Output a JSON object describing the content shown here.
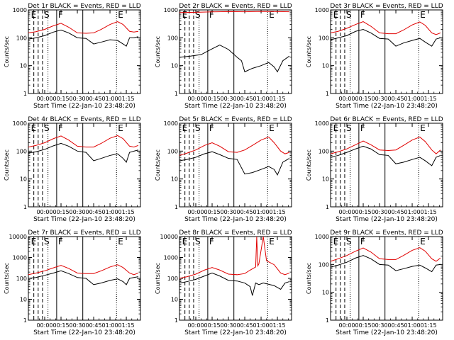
{
  "figure": {
    "rows": 3,
    "cols": 3,
    "ylabel": "Counts/sec",
    "xlabel": "Start Time (22-Jan-10 23:48:20)",
    "x_tick_labels": [
      "00:00",
      "00:15",
      "00:30",
      "00:45",
      "01:00",
      "01:15"
    ],
    "x_range_minutes": [
      -15,
      88
    ],
    "marker_labels": {
      "E_left": "E",
      "S": "S",
      "F": "F",
      "E_right": "E"
    },
    "colors": {
      "events": "#000000",
      "lld": "#e00000"
    }
  },
  "chart_data": [
    {
      "type": "line",
      "title": "Det 1r  BLACK = Events, RED = LLD",
      "yscale": "log",
      "ylim": [
        1,
        1000
      ],
      "yticks": [
        1,
        10,
        100,
        1000
      ],
      "series": [
        {
          "name": "Events",
          "color": "#000000",
          "x": [
            -15,
            -8,
            0,
            8,
            15,
            22,
            30,
            38,
            45,
            52,
            60,
            67,
            72,
            75,
            78,
            82,
            86
          ],
          "y": [
            90,
            100,
            120,
            160,
            190,
            150,
            100,
            95,
            60,
            70,
            85,
            80,
            60,
            50,
            100,
            100,
            110
          ]
        },
        {
          "name": "LLD",
          "color": "#e00000",
          "x": [
            -15,
            -8,
            0,
            8,
            15,
            22,
            30,
            38,
            45,
            52,
            60,
            67,
            72,
            78,
            82,
            86
          ],
          "y": [
            150,
            165,
            200,
            270,
            330,
            240,
            150,
            145,
            150,
            200,
            300,
            380,
            300,
            170,
            160,
            170
          ]
        }
      ]
    },
    {
      "type": "line",
      "title": "Det 2r  BLACK = Events, RED = LLD",
      "yscale": "log",
      "ylim": [
        1,
        1000
      ],
      "yticks": [
        1,
        10,
        100,
        1000
      ],
      "series": [
        {
          "name": "Events",
          "color": "#000000",
          "x": [
            -15,
            -5,
            5,
            15,
            22,
            30,
            38,
            42,
            45,
            52,
            60,
            67,
            72,
            75,
            80,
            86
          ],
          "y": [
            20,
            22,
            25,
            40,
            55,
            38,
            20,
            15,
            6,
            8,
            10,
            13,
            9,
            6,
            15,
            22
          ]
        },
        {
          "name": "LLD",
          "color": "#e00000",
          "x": [
            -15,
            0,
            15,
            30,
            45,
            60,
            75,
            86
          ],
          "y": [
            800,
            820,
            850,
            870,
            860,
            880,
            870,
            860
          ]
        }
      ]
    },
    {
      "type": "line",
      "title": "Det 3r  BLACK = Events, RED = LLD",
      "yscale": "log",
      "ylim": [
        1,
        1000
      ],
      "yticks": [
        1,
        10,
        100,
        1000
      ],
      "series": [
        {
          "name": "Events",
          "color": "#000000",
          "x": [
            -15,
            -8,
            0,
            8,
            15,
            22,
            30,
            38,
            45,
            52,
            60,
            67,
            72,
            78,
            82,
            86
          ],
          "y": [
            85,
            100,
            120,
            170,
            200,
            150,
            95,
            90,
            50,
            65,
            80,
            95,
            70,
            50,
            90,
            100
          ]
        },
        {
          "name": "LLD",
          "color": "#e00000",
          "x": [
            -15,
            -8,
            0,
            8,
            15,
            22,
            30,
            38,
            45,
            52,
            60,
            67,
            72,
            78,
            82,
            86
          ],
          "y": [
            150,
            170,
            220,
            300,
            380,
            260,
            150,
            140,
            140,
            190,
            290,
            370,
            280,
            150,
            130,
            150
          ]
        }
      ]
    },
    {
      "type": "line",
      "title": "Det 4r  BLACK = Events, RED = LLD",
      "yscale": "log",
      "ylim": [
        1,
        1000
      ],
      "yticks": [
        1,
        10,
        100,
        1000
      ],
      "series": [
        {
          "name": "Events",
          "color": "#000000",
          "x": [
            -15,
            -8,
            0,
            8,
            15,
            22,
            30,
            38,
            45,
            52,
            60,
            67,
            72,
            75,
            78,
            82,
            86
          ],
          "y": [
            85,
            95,
            115,
            155,
            190,
            150,
            100,
            90,
            45,
            55,
            70,
            80,
            55,
            40,
            90,
            100,
            110
          ]
        },
        {
          "name": "LLD",
          "color": "#e00000",
          "x": [
            -15,
            -8,
            0,
            8,
            15,
            22,
            30,
            38,
            45,
            52,
            60,
            67,
            72,
            78,
            82,
            86
          ],
          "y": [
            140,
            160,
            200,
            280,
            350,
            250,
            150,
            140,
            140,
            190,
            290,
            360,
            280,
            150,
            140,
            160
          ]
        }
      ]
    },
    {
      "type": "line",
      "title": "Det 5r  BLACK = Events, RED = LLD",
      "yscale": "log",
      "ylim": [
        1,
        1000
      ],
      "yticks": [
        1,
        10,
        100,
        1000
      ],
      "series": [
        {
          "name": "Events",
          "color": "#000000",
          "x": [
            -15,
            -8,
            0,
            8,
            15,
            22,
            30,
            38,
            45,
            52,
            60,
            67,
            72,
            75,
            80,
            86
          ],
          "y": [
            45,
            50,
            60,
            80,
            95,
            75,
            55,
            50,
            15,
            17,
            22,
            28,
            22,
            14,
            40,
            55
          ]
        },
        {
          "name": "LLD",
          "color": "#e00000",
          "x": [
            -15,
            -8,
            0,
            8,
            15,
            22,
            30,
            38,
            45,
            52,
            60,
            67,
            72,
            78,
            82,
            86
          ],
          "y": [
            70,
            85,
            110,
            160,
            200,
            150,
            95,
            90,
            110,
            160,
            250,
            320,
            200,
            100,
            80,
            90
          ]
        }
      ]
    },
    {
      "type": "line",
      "title": "Det 6r  BLACK = Events, RED = LLD",
      "yscale": "log",
      "ylim": [
        1,
        1000
      ],
      "yticks": [
        1,
        10,
        100,
        1000
      ],
      "series": [
        {
          "name": "Events",
          "color": "#000000",
          "x": [
            -15,
            -8,
            0,
            8,
            15,
            22,
            30,
            38,
            45,
            52,
            60,
            67,
            72,
            78,
            82,
            86
          ],
          "y": [
            60,
            70,
            90,
            120,
            150,
            120,
            75,
            70,
            35,
            40,
            50,
            60,
            45,
            30,
            60,
            70
          ]
        },
        {
          "name": "LLD",
          "color": "#e00000",
          "x": [
            -15,
            -8,
            0,
            8,
            15,
            22,
            30,
            38,
            45,
            52,
            60,
            67,
            72,
            78,
            82,
            86
          ],
          "y": [
            80,
            95,
            120,
            170,
            230,
            170,
            110,
            105,
            110,
            160,
            250,
            320,
            220,
            110,
            80,
            110
          ]
        }
      ]
    },
    {
      "type": "line",
      "title": "Det 7r  BLACK = Events, RED = LLD",
      "yscale": "log",
      "ylim": [
        1,
        10000
      ],
      "yticks": [
        1,
        10,
        100,
        1000,
        10000
      ],
      "series": [
        {
          "name": "Events",
          "color": "#000000",
          "x": [
            -15,
            -8,
            0,
            8,
            15,
            22,
            30,
            38,
            45,
            52,
            60,
            67,
            72,
            75,
            78,
            82,
            86
          ],
          "y": [
            100,
            110,
            140,
            180,
            230,
            170,
            110,
            100,
            50,
            60,
            80,
            95,
            70,
            50,
            100,
            110,
            120
          ]
        },
        {
          "name": "LLD",
          "color": "#e00000",
          "x": [
            -15,
            -8,
            0,
            8,
            15,
            22,
            30,
            38,
            45,
            52,
            60,
            67,
            72,
            78,
            82,
            86
          ],
          "y": [
            150,
            180,
            230,
            320,
            420,
            300,
            180,
            170,
            170,
            230,
            350,
            450,
            330,
            180,
            150,
            180
          ]
        }
      ]
    },
    {
      "type": "line",
      "title": "Det 8r  BLACK = Events, RED = LLD",
      "yscale": "log",
      "ylim": [
        1,
        10000
      ],
      "yticks": [
        1,
        10,
        100,
        1000,
        10000
      ],
      "series": [
        {
          "name": "Events",
          "color": "#000000",
          "x": [
            -15,
            -8,
            0,
            8,
            15,
            22,
            30,
            38,
            45,
            50,
            52,
            55,
            58,
            62,
            65,
            72,
            78,
            82,
            86
          ],
          "y": [
            60,
            70,
            90,
            130,
            180,
            130,
            80,
            75,
            60,
            40,
            15,
            60,
            50,
            60,
            55,
            45,
            30,
            60,
            70
          ]
        },
        {
          "name": "LLD",
          "color": "#e00000",
          "x": [
            -15,
            -8,
            0,
            8,
            15,
            22,
            30,
            38,
            45,
            50,
            55,
            56,
            57,
            58,
            62,
            65,
            72,
            78,
            82,
            86
          ],
          "y": [
            100,
            120,
            160,
            250,
            330,
            250,
            160,
            150,
            170,
            250,
            350,
            10000,
            400,
            500,
            10000,
            700,
            450,
            180,
            150,
            180
          ]
        }
      ]
    },
    {
      "type": "line",
      "title": "Det 9r  BLACK = Events, RED = LLD",
      "yscale": "log",
      "ylim": [
        1,
        1000
      ],
      "yticks": [
        1,
        10,
        100,
        1000
      ],
      "series": [
        {
          "name": "Events",
          "color": "#000000",
          "x": [
            -15,
            -8,
            0,
            8,
            15,
            22,
            30,
            38,
            45,
            52,
            60,
            67,
            72,
            78,
            82,
            86
          ],
          "y": [
            80,
            95,
            120,
            170,
            210,
            160,
            100,
            95,
            60,
            70,
            85,
            95,
            75,
            55,
            95,
            100
          ]
        },
        {
          "name": "LLD",
          "color": "#e00000",
          "x": [
            -15,
            -8,
            0,
            8,
            15,
            22,
            30,
            38,
            45,
            52,
            60,
            67,
            72,
            78,
            82,
            86
          ],
          "y": [
            130,
            160,
            210,
            300,
            390,
            280,
            160,
            150,
            150,
            210,
            320,
            400,
            300,
            160,
            130,
            170
          ]
        }
      ]
    }
  ]
}
